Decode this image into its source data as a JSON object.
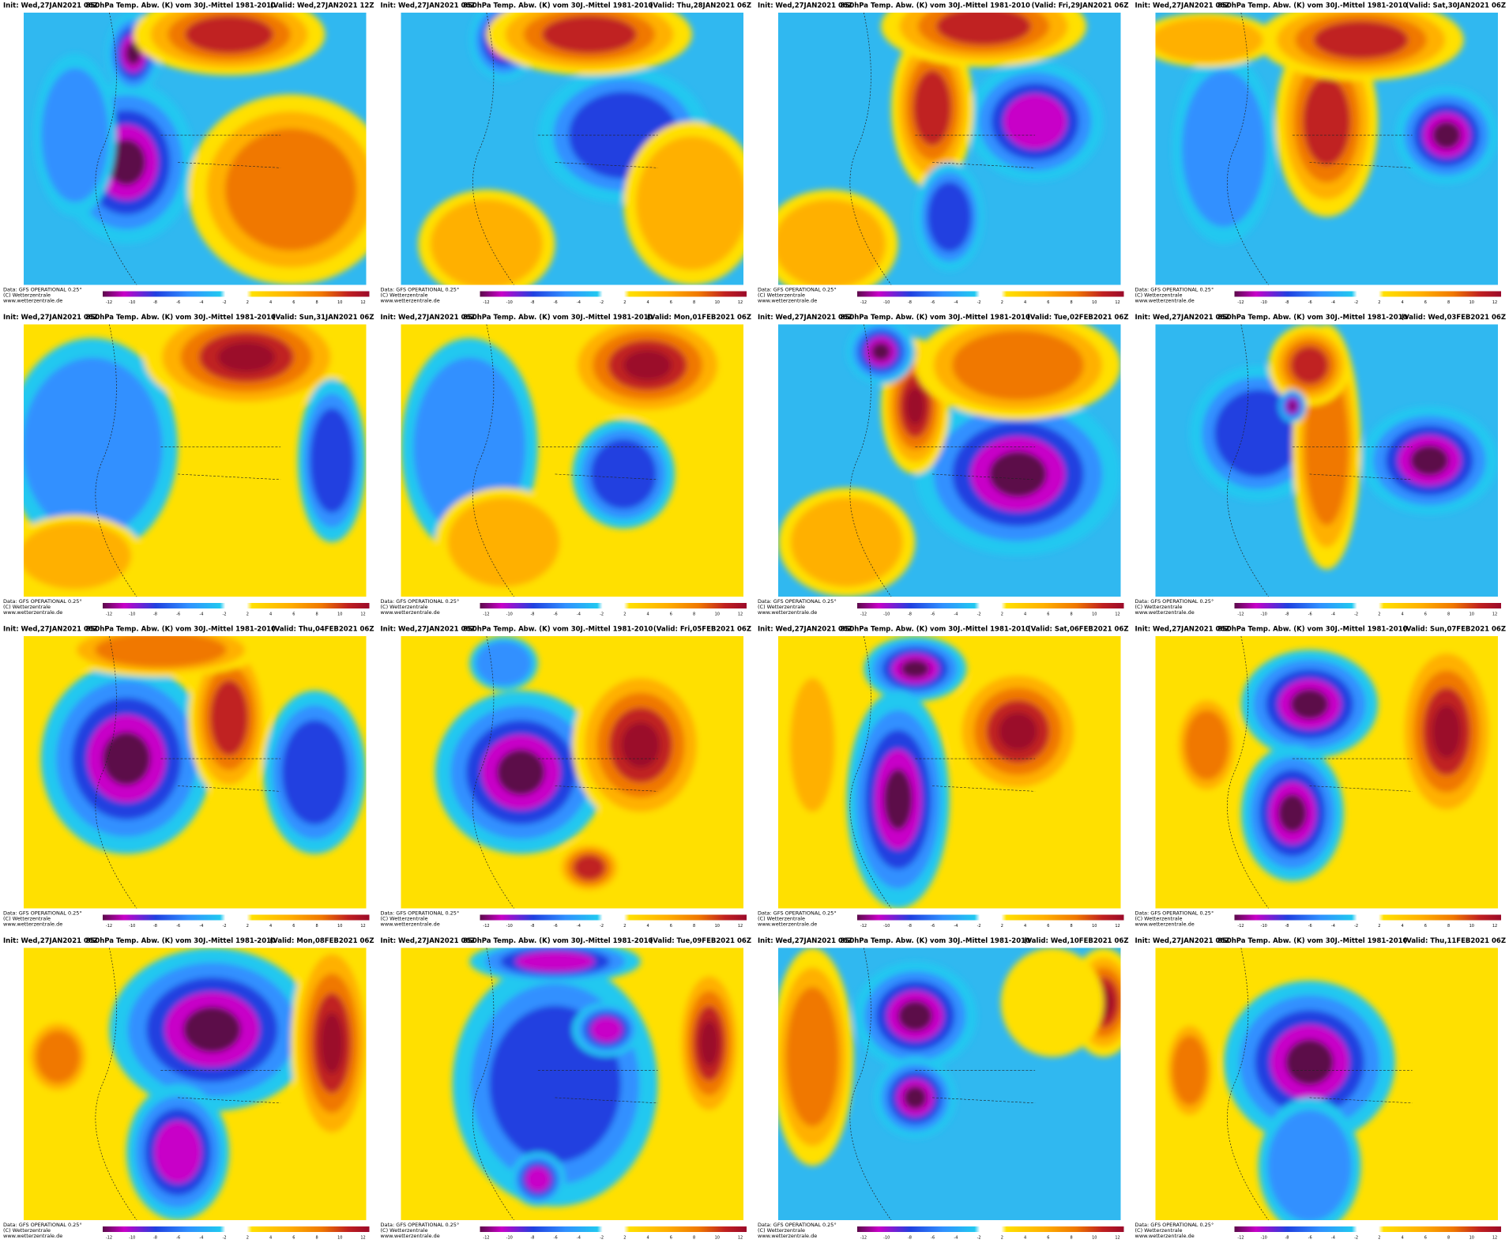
{
  "title": "850hPa Temp. Abw. (K) vom 30J.-Mittel 1981-2010",
  "footer": [
    "Data: GFS OPERATIONAL 0.25°",
    "(C) Wetterzentrale",
    "www.wetterzentrale.de"
  ],
  "colorbar_ticks": [
    "-12",
    "-10",
    "-8",
    "-6",
    "-4",
    "-2",
    "2",
    "4",
    "6",
    "8",
    "10",
    "12"
  ],
  "panels": [
    {
      "init": "Init: Wed,27JAN2021 06Z",
      "valid": "(Valid: Wed,27JAN2021 12Z"
    },
    {
      "init": "Init: Wed,27JAN2021 06Z",
      "valid": "(Valid: Thu,28JAN2021 06Z"
    },
    {
      "init": "Init: Wed,27JAN2021 06Z",
      "valid": "(Valid: Fri,29JAN2021 06Z"
    },
    {
      "init": "Init: Wed,27JAN2021 06Z",
      "valid": "(Valid: Sat,30JAN2021 06Z"
    },
    {
      "init": "Init: Wed,27JAN2021 06Z",
      "valid": "(Valid: Sun,31JAN2021 06Z"
    },
    {
      "init": "Init: Wed,27JAN2021 06Z",
      "valid": "(Valid: Mon,01FEB2021 06Z"
    },
    {
      "init": "Init: Wed,27JAN2021 06Z",
      "valid": "(Valid: Tue,02FEB2021 06Z"
    },
    {
      "init": "Init: Wed,27JAN2021 06Z",
      "valid": "(Valid: Wed,03FEB2021 06Z"
    },
    {
      "init": "Init: Wed,27JAN2021 06Z",
      "valid": "(Valid: Thu,04FEB2021 06Z"
    },
    {
      "init": "Init: Wed,27JAN2021 06Z",
      "valid": "(Valid: Fri,05FEB2021 06Z"
    },
    {
      "init": "Init: Wed,27JAN2021 06Z",
      "valid": "(Valid: Sat,06FEB2021 06Z"
    },
    {
      "init": "Init: Wed,27JAN2021 06Z",
      "valid": "(Valid: Sun,07FEB2021 06Z"
    },
    {
      "init": "Init: Wed,27JAN2021 06Z",
      "valid": "(Valid: Mon,08FEB2021 06Z"
    },
    {
      "init": "Init: Wed,27JAN2021 06Z",
      "valid": "(Valid: Tue,09FEB2021 06Z"
    },
    {
      "init": "Init: Wed,27JAN2021 06Z",
      "valid": "(Valid: Wed,10FEB2021 06Z"
    },
    {
      "init": "Init: Wed,27JAN2021 06Z",
      "valid": "(Valid: Thu,11FEB2021 06Z"
    }
  ]
}
